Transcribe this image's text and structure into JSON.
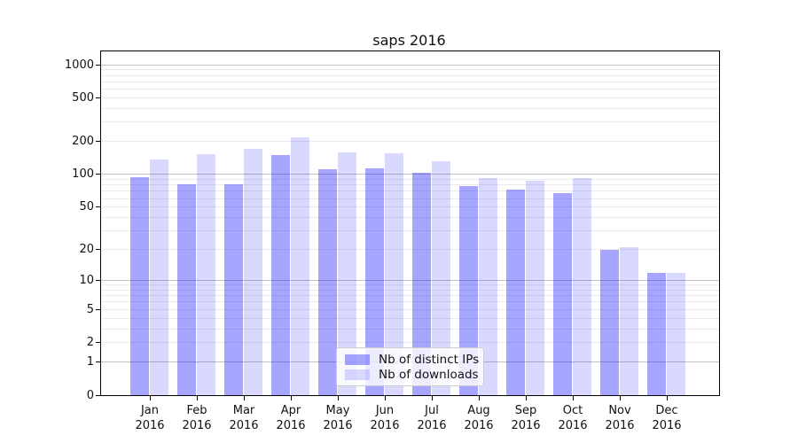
{
  "title": "saps 2016",
  "chart_data": {
    "type": "bar",
    "title": "saps 2016",
    "categories": [
      "Jan 2016",
      "Feb 2016",
      "Mar 2016",
      "Apr 2016",
      "May 2016",
      "Jun 2016",
      "Jul 2016",
      "Aug 2016",
      "Sep 2016",
      "Oct 2016",
      "Nov 2016",
      "Dec 2016"
    ],
    "series": [
      {
        "name": "Nb of distinct IPs",
        "color": "rgba(0,0,255,0.35)",
        "values": [
          95,
          82,
          82,
          150,
          112,
          113,
          104,
          78,
          72,
          67,
          20,
          12
        ]
      },
      {
        "name": "Nb of downloads",
        "color": "rgba(0,0,255,0.15)",
        "values": [
          138,
          154,
          170,
          220,
          158,
          156,
          131,
          92,
          87,
          92,
          21,
          12
        ]
      }
    ],
    "xlabel": "",
    "ylabel": "",
    "y_scale": "log1p",
    "y_ticks": [
      0,
      1,
      2,
      5,
      10,
      20,
      50,
      100,
      200,
      500,
      1000
    ],
    "ylim": [
      0,
      1200
    ],
    "grid": true,
    "legend_position": "lower center"
  },
  "colors": {
    "ips_bar": "rgba(0,0,255,0.35)",
    "downloads_bar": "rgba(0,0,255,0.15)",
    "grid_major": "#c2c2c2",
    "grid_minor": "#ebebeb",
    "axis": "#000000"
  }
}
